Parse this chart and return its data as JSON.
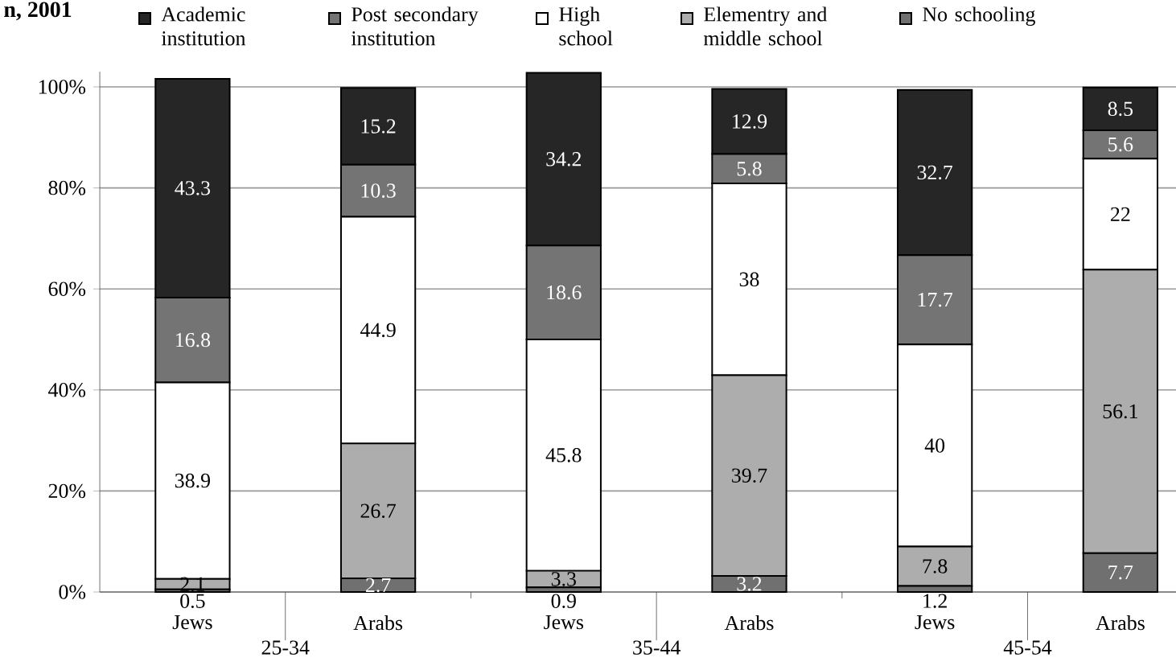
{
  "chart_data": {
    "type": "bar",
    "title": "n, 2001",
    "stacked": true,
    "categories": [
      "Jews",
      "Arabs",
      "Jews",
      "Arabs",
      "Jews",
      "Arabs"
    ],
    "annotations": [
      "25-34",
      "35-44",
      "45-54"
    ],
    "series": [
      {
        "name": "No schooling",
        "color": "#707070",
        "values": [
          0.5,
          2.7,
          0.9,
          3.2,
          1.2,
          7.7
        ]
      },
      {
        "name": "Elementry and middle school",
        "color": "#adadad",
        "values": [
          2.1,
          26.7,
          3.3,
          39.7,
          7.8,
          56.1
        ]
      },
      {
        "name": "High school",
        "color": "#ffffff",
        "values": [
          38.9,
          44.9,
          45.8,
          38,
          40,
          22
        ]
      },
      {
        "name": "Post secondary institution",
        "color": "#747474",
        "values": [
          16.8,
          10.3,
          18.6,
          5.8,
          17.7,
          5.6
        ]
      },
      {
        "name": "Academic institution",
        "color": "#262626",
        "values": [
          43.3,
          15.2,
          34.2,
          12.9,
          32.7,
          8.5
        ]
      }
    ],
    "ylim": [
      0,
      103
    ],
    "yticks": [
      {
        "value": 0,
        "label": "0%"
      },
      {
        "value": 20,
        "label": "20%"
      },
      {
        "value": 40,
        "label": "40%"
      },
      {
        "value": 60,
        "label": "60%"
      },
      {
        "value": 80,
        "label": "80%"
      },
      {
        "value": 100,
        "label": "100%"
      }
    ],
    "grid": "y",
    "legend": "top",
    "data_labels": true
  }
}
